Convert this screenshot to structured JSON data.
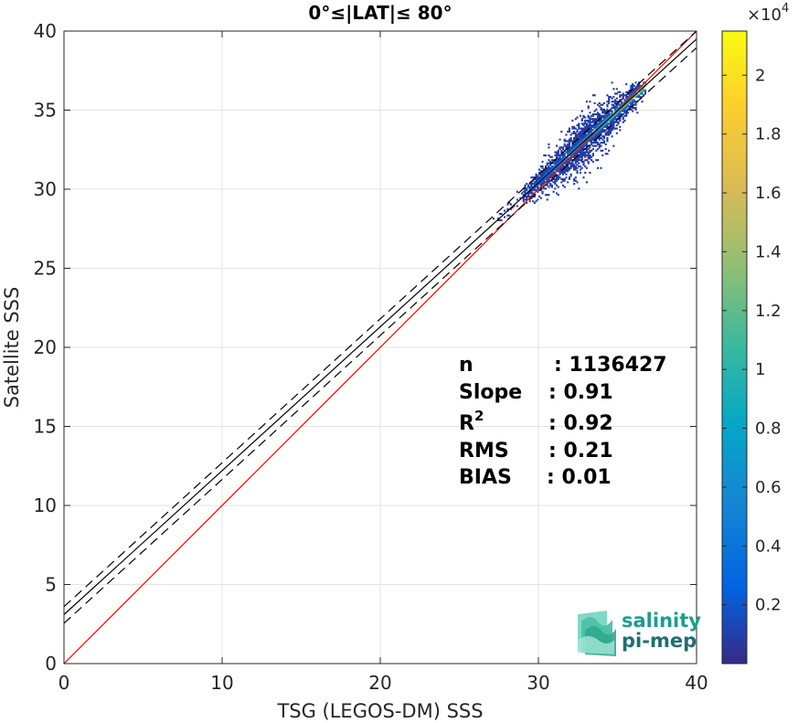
{
  "chart_data": {
    "type": "heatmap",
    "title": "0°≤|LAT|≤ 80°",
    "xlabel": "TSG (LEGOS-DM) SSS",
    "ylabel": "Satellite SSS",
    "xlim": [
      0,
      40
    ],
    "ylim": [
      0,
      40
    ],
    "xticks": [
      "0",
      "10",
      "20",
      "30",
      "40"
    ],
    "yticks": [
      "0",
      "5",
      "10",
      "15",
      "20",
      "25",
      "30",
      "35",
      "40"
    ],
    "grid": true,
    "colorbar": {
      "colormap": "parula",
      "range": [
        0,
        2.15
      ],
      "ticks": [
        "0.2",
        "0.4",
        "0.6",
        "0.8",
        "1",
        "1.2",
        "1.4",
        "1.6",
        "1.8",
        "2"
      ],
      "tick_values": [
        0.2,
        0.4,
        0.6,
        0.8,
        1,
        1.2,
        1.4,
        1.6,
        1.8,
        2
      ],
      "exponent_base": "×10",
      "exponent": "4"
    },
    "lines": [
      {
        "name": "1:1",
        "color": "#ff0000",
        "style": "solid",
        "slope": 1,
        "intercept": 0
      },
      {
        "name": "fit",
        "color": "#000000",
        "style": "solid",
        "slope": 0.91,
        "intercept": 3.1
      },
      {
        "name": "fit+",
        "color": "#000000",
        "style": "dashed",
        "slope": 0.91,
        "intercept": 3.6
      },
      {
        "name": "fit-",
        "color": "#000000",
        "style": "dashed",
        "slope": 0.91,
        "intercept": 2.55
      }
    ],
    "density": {
      "x_range": [
        26,
        37
      ],
      "y_range": [
        28,
        37
      ],
      "core_line": {
        "slope": 0.91,
        "intercept": 3.1
      },
      "peak_x": 35.5,
      "peak_value": 1.5
    },
    "stats": [
      {
        "key": "n",
        "value": ": 1136427"
      },
      {
        "key": "Slope",
        "value": ": 0.91"
      },
      {
        "key": "R",
        "sup": "2",
        "value": ": 0.92"
      },
      {
        "key": "RMS",
        "value": ": 0.21"
      },
      {
        "key": "BIAS",
        "value": ": 0.01"
      }
    ]
  },
  "logo": {
    "line1": "salinity",
    "line2": "pi-mep"
  }
}
